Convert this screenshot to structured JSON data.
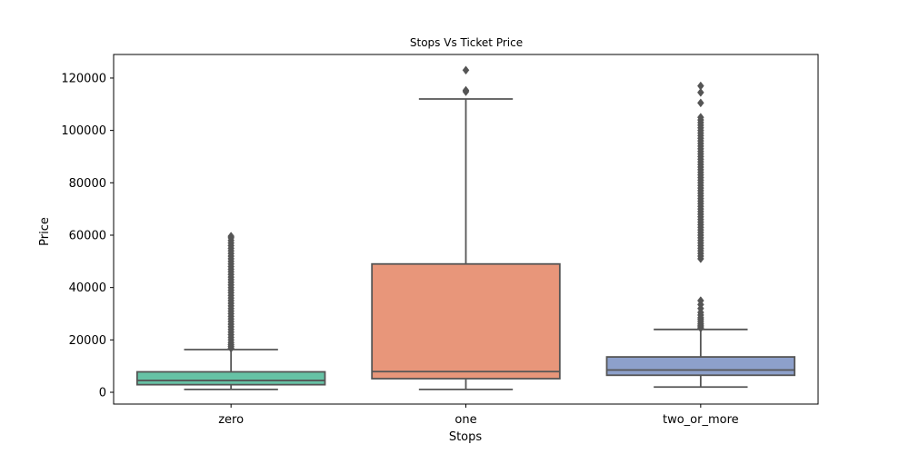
{
  "chart_data": {
    "type": "box",
    "title": "Stops Vs Ticket Price",
    "xlabel": "Stops",
    "ylabel": "Price",
    "categories": [
      "zero",
      "one",
      "two_or_more"
    ],
    "ylim": [
      -4500,
      129000
    ],
    "yticks": [
      0,
      20000,
      40000,
      60000,
      80000,
      100000,
      120000
    ],
    "grid": false,
    "colors": [
      "#66c2a5",
      "#e8967a",
      "#8da0cb"
    ],
    "boxes": [
      {
        "category": "zero",
        "whisker_low": 1100,
        "q1": 2900,
        "median": 4500,
        "q3": 7800,
        "whisker_high": 16300,
        "outliers": [
          16800,
          17500,
          18200,
          19000,
          20000,
          21000,
          22000,
          23000,
          24000,
          25000,
          26000,
          27000,
          28000,
          29000,
          30000,
          31000,
          32000,
          33000,
          34000,
          35000,
          36000,
          37000,
          38000,
          39000,
          40000,
          41000,
          42000,
          43000,
          44000,
          45000,
          46000,
          47000,
          48000,
          49000,
          50000,
          51000,
          52000,
          53000,
          54000,
          55000,
          56000,
          57000,
          58000,
          59000,
          59600
        ]
      },
      {
        "category": "one",
        "whisker_low": 1100,
        "q1": 5200,
        "median": 7900,
        "q3": 49000,
        "whisker_high": 112000,
        "outliers": [
          114800,
          115300,
          123000
        ]
      },
      {
        "category": "two_or_more",
        "whisker_low": 2000,
        "q1": 6500,
        "median": 8500,
        "q3": 13500,
        "whisker_high": 24000,
        "outliers": [
          24500,
          25000,
          25600,
          26200,
          27000,
          27800,
          28500,
          29500,
          30500,
          32000,
          33500,
          35000,
          51000,
          52000,
          53000,
          54000,
          55000,
          56000,
          57000,
          58000,
          59000,
          60000,
          61000,
          62000,
          63000,
          64000,
          65000,
          66000,
          67000,
          68000,
          69000,
          70000,
          71000,
          72000,
          73000,
          74000,
          75000,
          76000,
          77000,
          78000,
          79000,
          80000,
          81000,
          82000,
          83000,
          84000,
          85000,
          86000,
          87000,
          88000,
          89000,
          90000,
          91000,
          92000,
          93000,
          94000,
          95000,
          96000,
          97000,
          98000,
          99000,
          100000,
          101000,
          102000,
          103000,
          104000,
          105000,
          110500,
          114500,
          117000
        ]
      }
    ]
  }
}
